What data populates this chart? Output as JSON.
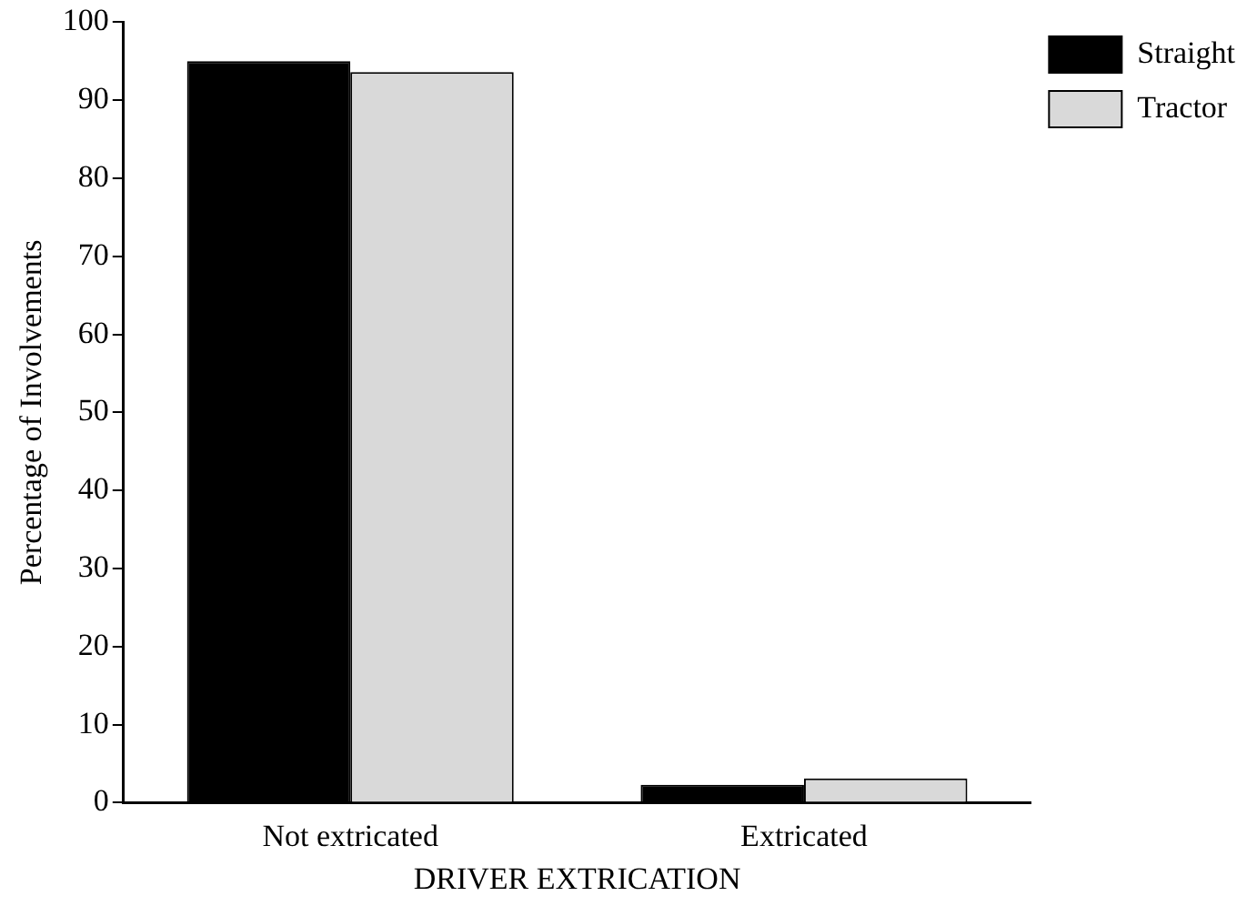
{
  "chart_data": {
    "type": "bar",
    "xlabel": "DRIVER EXTRICATION",
    "ylabel": "Percentage of Involvements",
    "categories": [
      "Not extricated",
      "Extricated"
    ],
    "series": [
      {
        "name": "Straight",
        "color": "#000000",
        "values": [
          95,
          2.3
        ]
      },
      {
        "name": "Tractor",
        "color": "#d9d9d9",
        "values": [
          93.6,
          3.1
        ]
      }
    ],
    "ylim": [
      0,
      100
    ],
    "yticks": [
      0,
      10,
      20,
      30,
      40,
      50,
      60,
      70,
      80,
      90,
      100
    ],
    "grid": false,
    "legend": "right"
  }
}
